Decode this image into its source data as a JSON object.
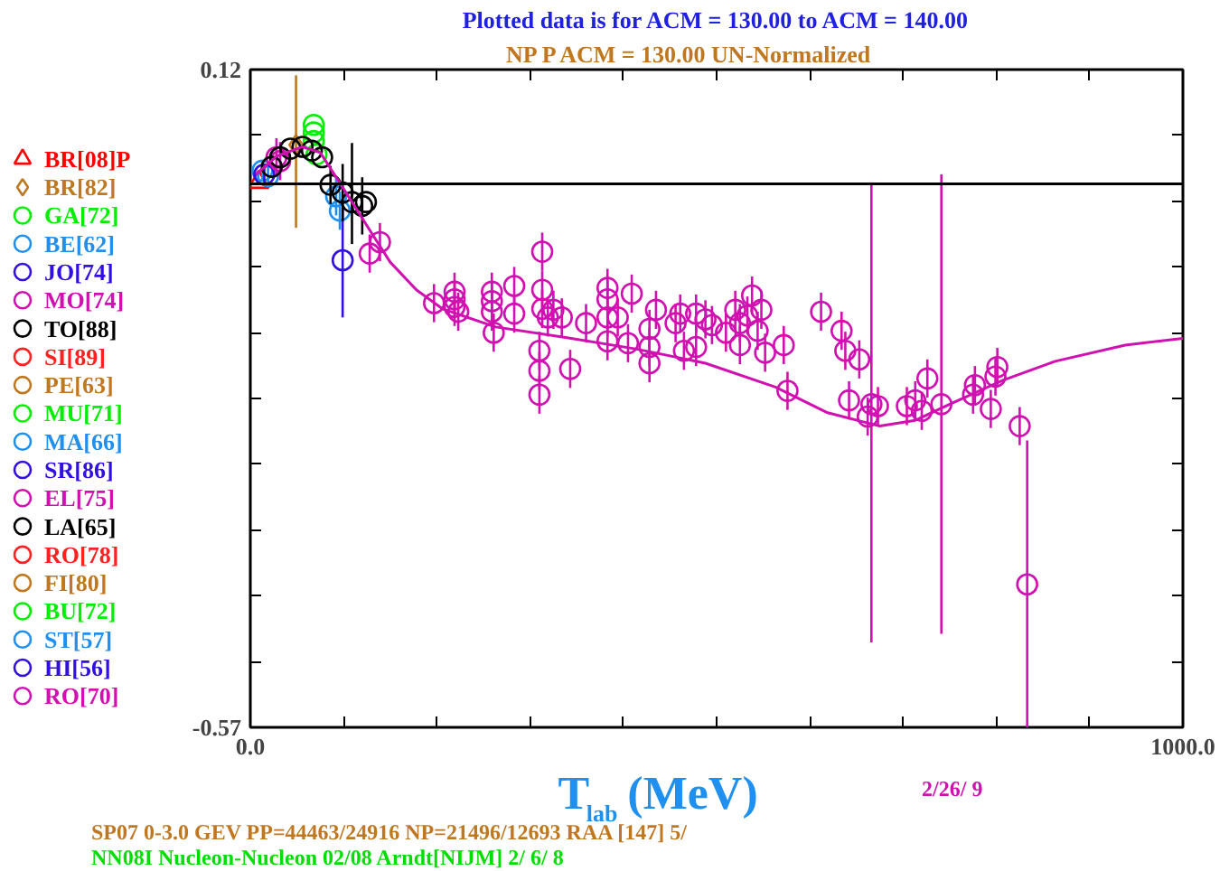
{
  "chart_data": {
    "type": "scatter",
    "title": "Plotted data is for ACM = 130.00 to ACM = 140.00",
    "subtitle": "NP    P      ACM =  130.00 UN-Normalized",
    "xlabel": "T$_{lab}$ (MeV)",
    "xlim": [
      0,
      1000
    ],
    "xticks": [
      {
        "value": 0,
        "label": "0.0"
      },
      {
        "value": 100,
        "label": null
      },
      {
        "value": 200,
        "label": null
      },
      {
        "value": 300,
        "label": null
      },
      {
        "value": 400,
        "label": null
      },
      {
        "value": 500,
        "label": null
      },
      {
        "value": 600,
        "label": null
      },
      {
        "value": 700,
        "label": null
      },
      {
        "value": 800,
        "label": null
      },
      {
        "value": 900,
        "label": null
      },
      {
        "value": 1000,
        "label": "1000.0"
      }
    ],
    "ylim": [
      -0.57,
      0.12
    ],
    "yticks": [
      {
        "value": -0.57,
        "label": "-0.57"
      },
      {
        "value": -0.501,
        "label": null
      },
      {
        "value": -0.432,
        "label": null
      },
      {
        "value": -0.363,
        "label": null
      },
      {
        "value": -0.294,
        "label": null
      },
      {
        "value": -0.225,
        "label": null
      },
      {
        "value": -0.156,
        "label": null
      },
      {
        "value": -0.087,
        "label": null
      },
      {
        "value": -0.018,
        "label": null
      },
      {
        "value": 0.051,
        "label": null
      },
      {
        "value": 0.12,
        "label": "0.12"
      }
    ],
    "grid": false,
    "legend": "left",
    "ref_lines": [
      {
        "axis": "y",
        "value": 0,
        "color": "#000000"
      }
    ],
    "annotations": [
      "2/26/ 9",
      "SP07 0-3.0 GEV PP=44463/24916 NP=21496/12693 RAA [147]  5/",
      "NN08I Nucleon-Nucleon 02/08 Arndt[NIJM]  2/ 6/ 8"
    ],
    "series": [
      {
        "name": "BR[08]P",
        "color": "#ff0000",
        "marker": "triangle",
        "x": [
          9
        ],
        "values": [
          0.002
        ]
      },
      {
        "name": "BR[82]",
        "color": "#c07820",
        "marker": "diamond",
        "x": [
          49
        ],
        "values": [
          0.041
        ],
        "errors": [
          [
            -0.046,
            0.114
          ]
        ]
      },
      {
        "name": "GA[72]",
        "color": "#00ee00",
        "x": [
          68,
          68,
          68,
          71
        ],
        "values": [
          0.062,
          0.054,
          0.045,
          0.031
        ]
      },
      {
        "name": "BE[62]",
        "color": "#2090f0",
        "marker": "circle",
        "x": [
          13,
          19,
          92,
          96
        ],
        "values": [
          0.014,
          0.008,
          -0.013,
          -0.028
        ],
        "errors": [
          0.01,
          0.01,
          0.02,
          0.02
        ]
      },
      {
        "name": "JO[74]",
        "color": "#3010e0",
        "marker": "circle",
        "x": [
          15,
          99
        ],
        "values": [
          0.01,
          -0.08
        ],
        "errors": [
          0.01,
          [
            -0.14,
            -0.025
          ]
        ]
      },
      {
        "name": "MO[74]",
        "color": "#d010b0",
        "marker": "circle",
        "x": [
          28,
          32,
          128,
          139,
          197,
          219,
          219,
          219,
          223,
          259,
          259,
          259,
          261,
          283,
          283,
          310,
          310,
          310,
          313,
          313,
          313,
          319,
          325,
          334,
          343,
          360,
          383,
          383,
          383,
          383,
          394,
          405,
          409,
          428,
          428,
          428,
          435,
          456,
          461,
          465,
          478,
          478,
          488,
          495,
          510,
          520,
          525,
          525,
          533,
          538,
          544,
          548,
          552,
          572,
          576,
          612,
          634,
          638,
          642,
          653,
          662,
          666,
          673,
          704,
          713,
          720,
          726,
          741,
          775,
          777,
          794,
          799,
          801,
          825,
          833
        ],
        "values": [
          0.028,
          0.024,
          -0.073,
          -0.061,
          -0.125,
          -0.113,
          -0.121,
          -0.129,
          -0.134,
          -0.113,
          -0.123,
          -0.134,
          -0.156,
          -0.107,
          -0.136,
          -0.175,
          -0.196,
          -0.221,
          -0.071,
          -0.111,
          -0.131,
          -0.14,
          -0.132,
          -0.14,
          -0.194,
          -0.146,
          -0.109,
          -0.121,
          -0.14,
          -0.165,
          -0.14,
          -0.167,
          -0.115,
          -0.152,
          -0.171,
          -0.188,
          -0.132,
          -0.146,
          -0.136,
          -0.175,
          -0.136,
          -0.171,
          -0.142,
          -0.148,
          -0.156,
          -0.132,
          -0.146,
          -0.169,
          -0.138,
          -0.117,
          -0.154,
          -0.132,
          -0.177,
          -0.169,
          -0.217,
          -0.134,
          -0.154,
          -0.175,
          -0.227,
          -0.184,
          -0.244,
          -0.231,
          -0.233,
          -0.233,
          -0.227,
          -0.238,
          -0.204,
          -0.231,
          -0.221,
          -0.211,
          -0.236,
          -0.202,
          -0.192,
          -0.254,
          -0.42
        ],
        "errors": [
          0.02,
          0.02,
          0.02,
          0.02,
          0.02,
          0.02,
          0.02,
          0.02,
          0.02,
          0.02,
          0.02,
          0.02,
          0.02,
          0.02,
          0.02,
          0.02,
          0.02,
          0.02,
          0.02,
          0.02,
          0.02,
          0.02,
          0.02,
          0.02,
          0.02,
          0.02,
          0.02,
          0.02,
          0.02,
          0.02,
          0.02,
          0.02,
          0.02,
          0.02,
          0.02,
          0.02,
          0.02,
          0.02,
          0.02,
          0.02,
          0.02,
          0.02,
          0.02,
          0.02,
          0.02,
          0.02,
          0.02,
          0.02,
          0.02,
          0.02,
          0.02,
          0.02,
          0.02,
          0.02,
          0.02,
          0.02,
          0.02,
          0.02,
          0.02,
          0.02,
          0.02,
          [
            -0.481,
            -0.001
          ],
          0.02,
          0.02,
          0.02,
          0.02,
          0.02,
          [
            -0.472,
            0.01
          ],
          0.02,
          0.02,
          0.02,
          0.02,
          0.02,
          0.02,
          [
            -0.57,
            -0.269
          ]
        ]
      },
      {
        "name": "TO[88]",
        "color": "#000000",
        "marker": "circle",
        "x": [
          23,
          32,
          43,
          56,
          66,
          77,
          86,
          99,
          109,
          120,
          124
        ],
        "values": [
          0.018,
          0.028,
          0.037,
          0.039,
          0.035,
          0.028,
          -0.001,
          -0.009,
          -0.019,
          -0.023,
          -0.019
        ],
        "errors": [
          null,
          null,
          null,
          null,
          null,
          null,
          0.02,
          0.03,
          [
            -0.063,
            0.043
          ],
          0.03,
          null
        ]
      },
      {
        "name": "SI[89]",
        "color": "#ff2020",
        "marker": "circle"
      },
      {
        "name": "PE[63]",
        "color": "#c07820",
        "marker": "circle"
      },
      {
        "name": "MU[71]",
        "color": "#00ee00",
        "marker": "circle"
      },
      {
        "name": "MA[66]",
        "color": "#2090f0",
        "marker": "circle"
      },
      {
        "name": "SR[86]",
        "color": "#3010e0",
        "marker": "circle"
      },
      {
        "name": "EL[75]",
        "color": "#d010b0",
        "marker": "circle"
      },
      {
        "name": "LA[65]",
        "color": "#000000",
        "marker": "circle"
      },
      {
        "name": "RO[78]",
        "color": "#ff2020",
        "marker": "circle"
      },
      {
        "name": "FI[80]",
        "color": "#c07820",
        "marker": "circle"
      },
      {
        "name": "BU[72]",
        "color": "#00ee00",
        "marker": "circle"
      },
      {
        "name": "ST[57]",
        "color": "#2090f0",
        "marker": "circle"
      },
      {
        "name": "HI[56]",
        "color": "#3010e0",
        "marker": "circle"
      },
      {
        "name": "RO[70]",
        "color": "#d010b0",
        "marker": "circle"
      },
      {
        "type": "line",
        "color": "#d010b0",
        "x": [
          6,
          28,
          56,
          75,
          94,
          113,
          131,
          150,
          178,
          206,
          263,
          338,
          413,
          488,
          563,
          619,
          675,
          713,
          750,
          807,
          863,
          938,
          1000
        ],
        "values": [
          0.01,
          0.029,
          0.039,
          0.033,
          0.004,
          -0.025,
          -0.053,
          -0.082,
          -0.111,
          -0.131,
          -0.15,
          -0.161,
          -0.173,
          -0.188,
          -0.213,
          -0.24,
          -0.254,
          -0.248,
          -0.231,
          -0.206,
          -0.186,
          -0.169,
          -0.162
        ]
      }
    ]
  }
}
